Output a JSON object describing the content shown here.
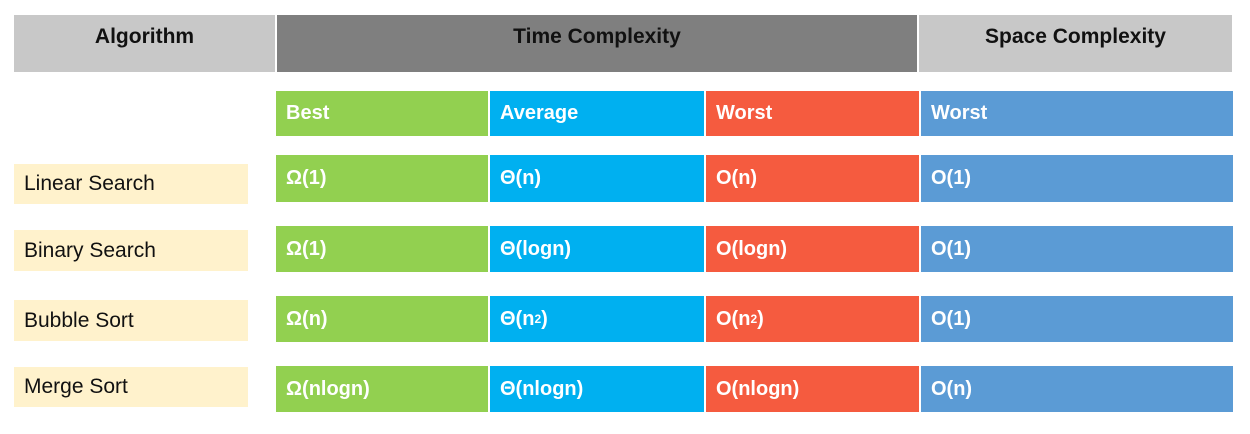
{
  "header": {
    "algorithm": "Algorithm",
    "time_complexity": "Time Complexity",
    "space_complexity": "Space Complexity"
  },
  "subheader": {
    "best": "Best",
    "average": "Average",
    "worst": "Worst",
    "space_worst": "Worst"
  },
  "rows": [
    {
      "name": "Linear Search",
      "best": "Ω(1)",
      "average": "Θ(n)",
      "worst": "O(n)",
      "space": "O(1)"
    },
    {
      "name": "Binary Search",
      "best": "Ω(1)",
      "average": "Θ(logn)",
      "worst": "O(logn)",
      "space": "O(1)"
    },
    {
      "name": "Bubble Sort",
      "best": "Ω(n)",
      "average_base": "Θ(n",
      "average_exp": "2",
      "average_close": ")",
      "worst_base": "O(n",
      "worst_exp": "2",
      "worst_close": ")",
      "space": "O(1)"
    },
    {
      "name": "Merge Sort",
      "best": "Ω(nlogn)",
      "average": "Θ(nlogn)",
      "worst": "O(nlogn)",
      "space": "O(n)"
    }
  ],
  "colors": {
    "best": "#92d050",
    "average": "#00b0f0",
    "worst": "#f55b3f",
    "space": "#5b9bd5",
    "algorithm_cell": "#fff2cc"
  }
}
